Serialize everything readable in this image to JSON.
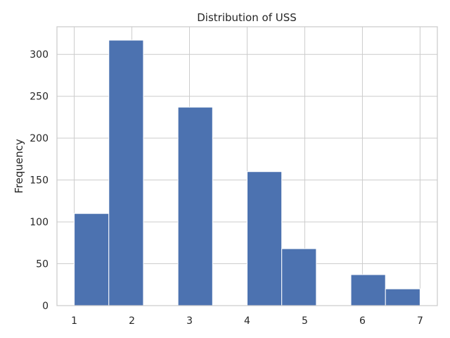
{
  "chart_data": {
    "type": "bar",
    "title": "Distribution of USS",
    "xlabel": "",
    "ylabel": "Frequency",
    "bin_edges": [
      1.0,
      1.6,
      2.2,
      2.8,
      3.4,
      4.0,
      4.6,
      5.2,
      5.8,
      6.4,
      7.0
    ],
    "values": [
      110,
      317,
      0,
      237,
      0,
      160,
      68,
      0,
      37,
      20
    ],
    "xticks": [
      1,
      2,
      3,
      4,
      5,
      6,
      7
    ],
    "yticks": [
      0,
      50,
      100,
      150,
      200,
      250,
      300
    ],
    "xlim": [
      0.7,
      7.3
    ],
    "ylim": [
      0,
      333
    ],
    "grid": true,
    "colors": {
      "bar": "#4c72b0",
      "grid": "#cccccc",
      "spine": "#cccccc",
      "background": "#ffffff"
    }
  }
}
